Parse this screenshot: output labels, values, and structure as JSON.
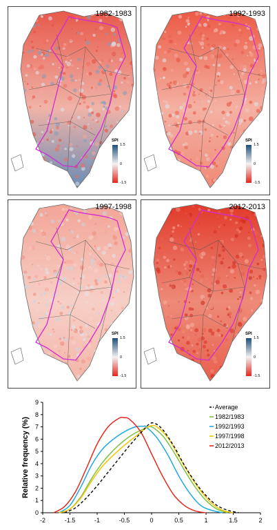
{
  "maps": {
    "legend_title": "SPI",
    "legend_ticks": [
      "1.5",
      "0",
      "-1.5"
    ],
    "legend_colors": {
      "high": "#1f4e79",
      "mid": "#f2f2f2",
      "low": "#e8251b"
    },
    "border_color": "#d12bd1",
    "panels": [
      {
        "title": "1982-1983",
        "dominant": "mixed-red-north-blue-south"
      },
      {
        "title": "1992-1993",
        "dominant": "red"
      },
      {
        "title": "1997-1998",
        "dominant": "light-red"
      },
      {
        "title": "2012-2013",
        "dominant": "strong-red"
      }
    ]
  },
  "chart_data": {
    "type": "line",
    "title": "",
    "xlabel": "",
    "ylabel": "Relative frequency (%)",
    "xlim": [
      -2,
      2
    ],
    "ylim": [
      0,
      9
    ],
    "xticks": [
      "-2",
      "-1.5",
      "-1",
      "-0.5",
      "0",
      "0.5",
      "1",
      "1.5",
      "2"
    ],
    "yticks": [
      "0",
      "1",
      "2",
      "3",
      "4",
      "5",
      "6",
      "7",
      "8",
      "9"
    ],
    "grid": false,
    "legend_position": "top-right",
    "series": [
      {
        "name": "Average",
        "color": "#000000",
        "dashed": true,
        "x": [
          -1.6,
          -1.4,
          -1.2,
          -1.0,
          -0.8,
          -0.6,
          -0.4,
          -0.2,
          -0.05,
          0.05,
          0.2,
          0.4,
          0.6,
          0.8,
          1.0,
          1.2,
          1.4,
          1.6
        ],
        "y": [
          0.0,
          0.4,
          1.2,
          2.2,
          3.3,
          4.4,
          5.5,
          6.5,
          7.2,
          7.3,
          6.8,
          5.5,
          3.9,
          2.5,
          1.4,
          0.6,
          0.2,
          0.0
        ]
      },
      {
        "name": "1982/1983",
        "color": "#7cc243",
        "dashed": false,
        "x": [
          -1.7,
          -1.5,
          -1.3,
          -1.1,
          -0.9,
          -0.7,
          -0.5,
          -0.3,
          -0.1,
          0.0,
          0.2,
          0.4,
          0.6,
          0.8,
          1.0,
          1.2,
          1.4
        ],
        "y": [
          0.0,
          0.3,
          1.3,
          2.8,
          4.1,
          5.1,
          5.9,
          6.5,
          6.9,
          7.0,
          6.3,
          5.0,
          3.5,
          2.1,
          1.0,
          0.3,
          0.0
        ]
      },
      {
        "name": "1992/1993",
        "color": "#1ea9e0",
        "dashed": false,
        "x": [
          -1.7,
          -1.5,
          -1.3,
          -1.1,
          -0.9,
          -0.7,
          -0.5,
          -0.3,
          -0.15,
          -0.1,
          0.1,
          0.3,
          0.5,
          0.7,
          0.9,
          1.1,
          1.3
        ],
        "y": [
          0.0,
          0.6,
          2.1,
          3.9,
          5.2,
          6.0,
          6.6,
          7.0,
          7.05,
          7.0,
          6.1,
          4.7,
          3.0,
          1.6,
          0.6,
          0.2,
          0.0
        ]
      },
      {
        "name": "1997/1998",
        "color": "#f2c400",
        "dashed": false,
        "x": [
          -1.7,
          -1.5,
          -1.3,
          -1.1,
          -0.9,
          -0.7,
          -0.5,
          -0.3,
          -0.1,
          0.0,
          0.1,
          0.3,
          0.5,
          0.7,
          0.9,
          1.1,
          1.3,
          1.5
        ],
        "y": [
          0.0,
          0.3,
          1.2,
          2.6,
          3.8,
          4.7,
          5.5,
          6.2,
          6.9,
          7.1,
          7.0,
          6.1,
          4.6,
          3.1,
          1.8,
          0.8,
          0.2,
          0.0
        ]
      },
      {
        "name": "2012/2013",
        "color": "#e8251b",
        "dashed": false,
        "x": [
          -1.8,
          -1.6,
          -1.4,
          -1.2,
          -1.0,
          -0.8,
          -0.6,
          -0.5,
          -0.4,
          -0.2,
          0.0,
          0.2,
          0.4,
          0.6,
          0.8,
          1.0
        ],
        "y": [
          0.0,
          0.5,
          1.7,
          3.6,
          5.6,
          7.0,
          7.7,
          7.75,
          7.6,
          6.6,
          4.8,
          3.0,
          1.5,
          0.6,
          0.15,
          0.0
        ]
      }
    ]
  }
}
